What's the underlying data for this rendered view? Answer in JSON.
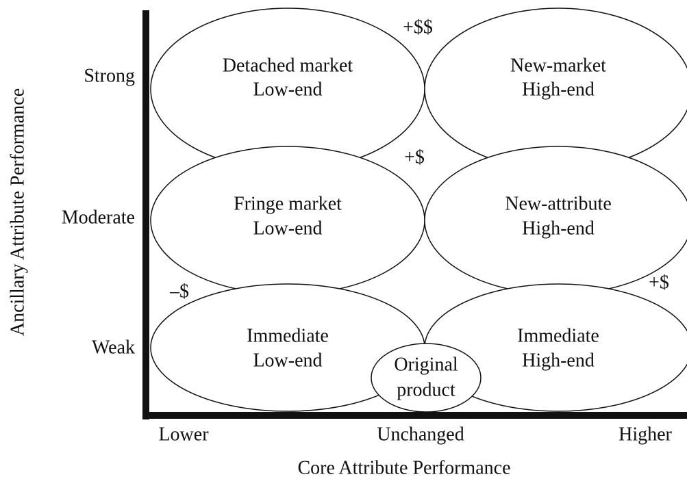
{
  "axes": {
    "x_title": "Core Attribute Performance",
    "y_title": "Ancillary Attribute Performance",
    "x_levels": [
      "Lower",
      "Unchanged",
      "Higher"
    ],
    "y_levels": [
      "Strong",
      "Moderate",
      "Weak"
    ]
  },
  "regions": [
    {
      "lines": [
        "Detached market",
        "Low-end"
      ]
    },
    {
      "lines": [
        "New-market",
        "High-end"
      ]
    },
    {
      "lines": [
        "Fringe market",
        "Low-end"
      ]
    },
    {
      "lines": [
        "New-attribute",
        "High-end"
      ]
    },
    {
      "lines": [
        "Immediate",
        "Low-end"
      ]
    },
    {
      "lines": [
        "Immediate",
        "High-end"
      ]
    }
  ],
  "original": {
    "lines": [
      "Original",
      "product"
    ]
  },
  "annotations": [
    "+$$",
    "+$",
    "–$",
    "+$"
  ]
}
